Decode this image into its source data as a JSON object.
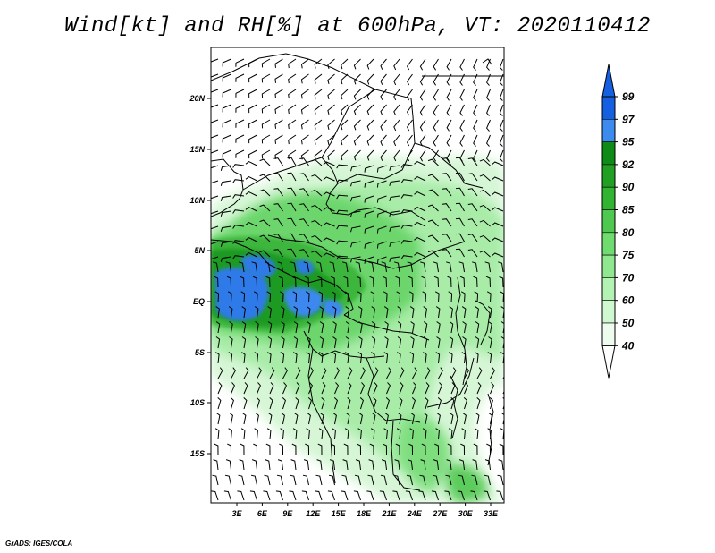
{
  "title": "Wind[kt] and RH[%] at 600hPa, VT: 2020110412",
  "credit": "GrADS: IGES/COLA",
  "map": {
    "lat_labels": [
      "20N",
      "15N",
      "10N",
      "5N",
      "EQ",
      "5S",
      "10S",
      "15S"
    ],
    "lon_labels": [
      "3E",
      "6E",
      "9E",
      "12E",
      "15E",
      "18E",
      "21E",
      "24E",
      "27E",
      "30E",
      "33E"
    ]
  },
  "colorbar": {
    "labels": [
      "99",
      "97",
      "95",
      "92",
      "90",
      "85",
      "80",
      "75",
      "70",
      "60",
      "50",
      "40"
    ],
    "colors": [
      "#1560e0",
      "#3c8cf0",
      "#0e8a16",
      "#1fa022",
      "#32b432",
      "#4ec84e",
      "#6edc6e",
      "#8fe88f",
      "#b2f2b2",
      "#d0f8d0",
      "#eefcee"
    ]
  }
}
